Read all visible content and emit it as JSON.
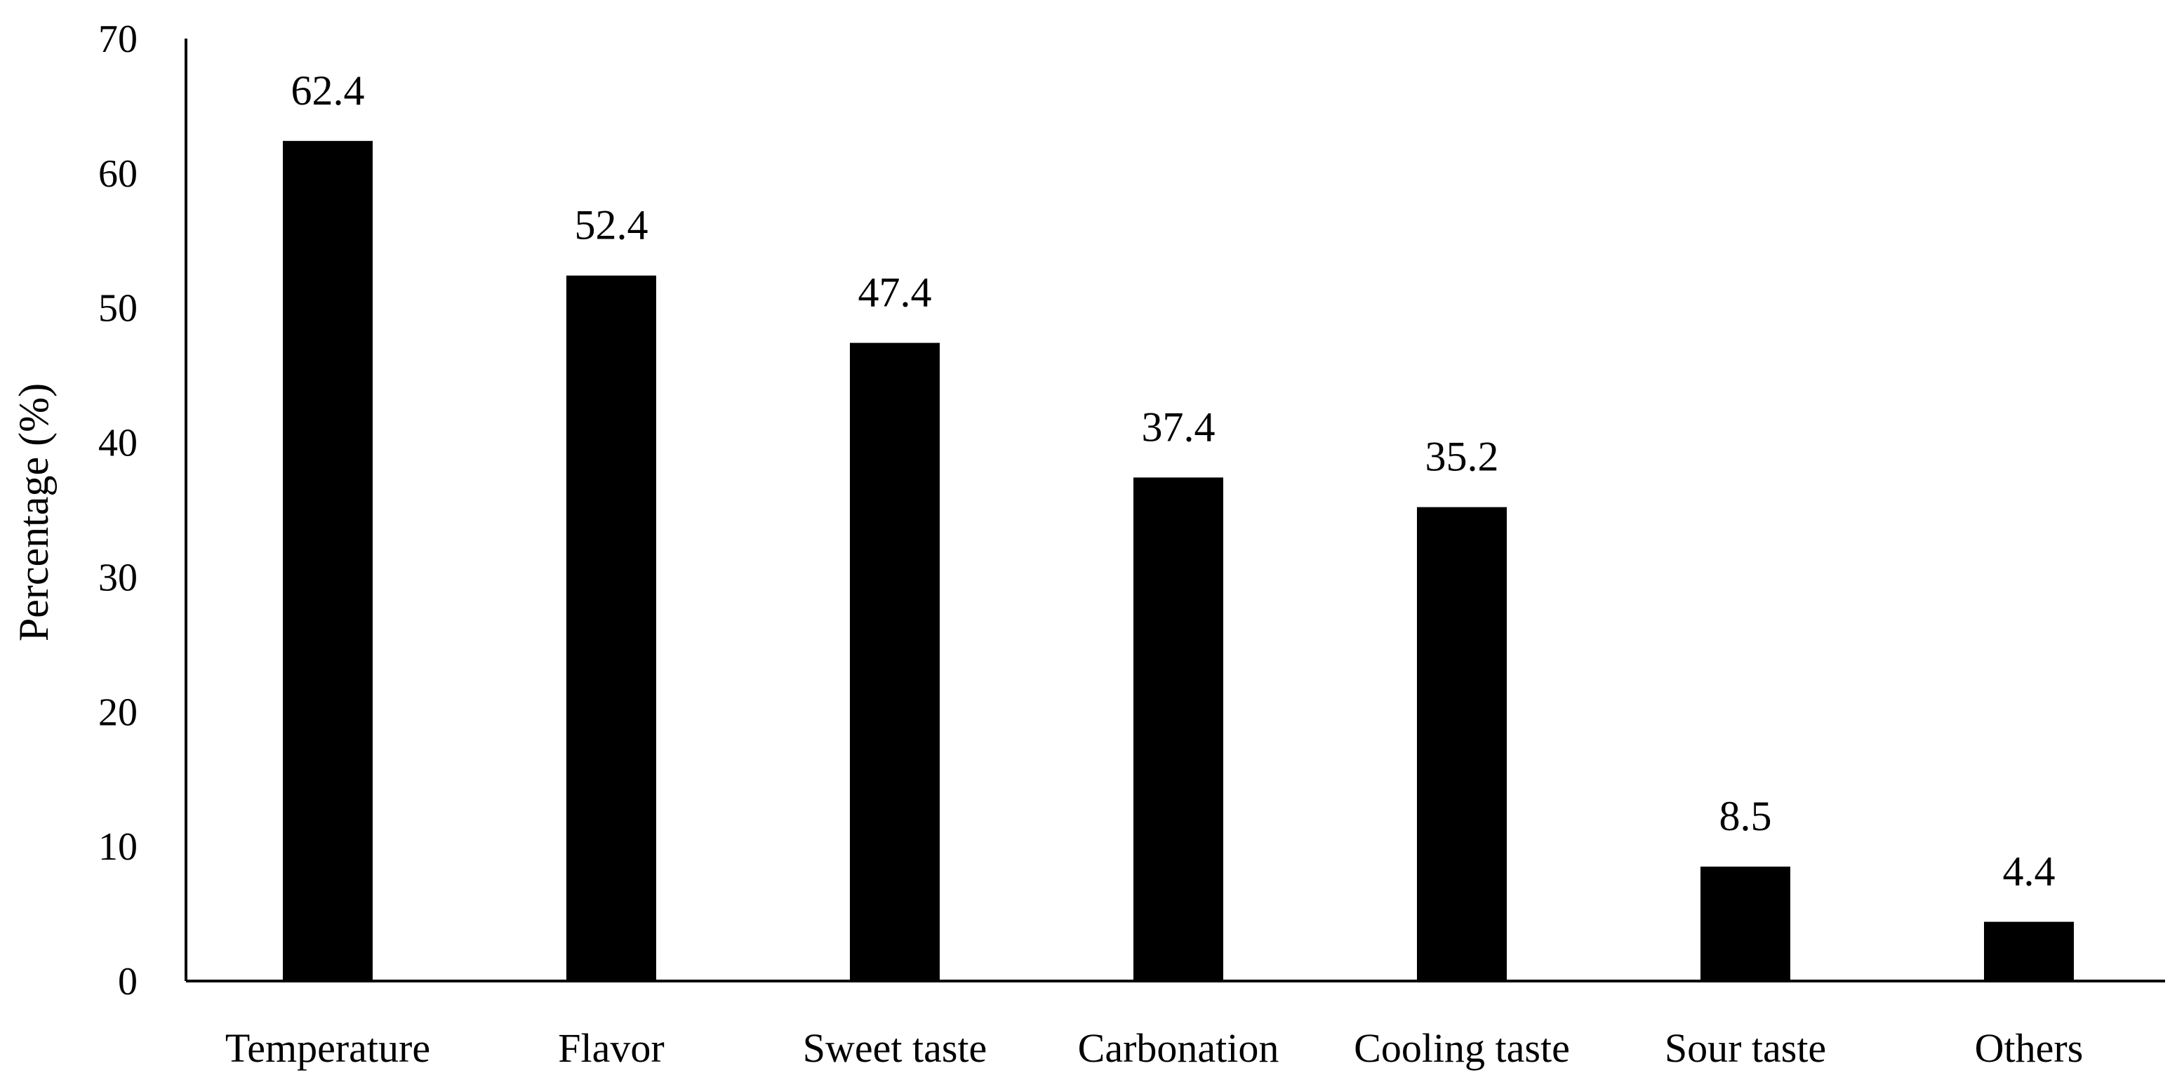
{
  "chart_data": {
    "type": "bar",
    "title": "",
    "xlabel": "",
    "ylabel": "Percentage (%)",
    "ylim": [
      0,
      70
    ],
    "yticks": [
      0,
      10,
      20,
      30,
      40,
      50,
      60,
      70
    ],
    "grid": false,
    "legend": "none",
    "categories": [
      "Temperature",
      "Flavor",
      "Sweet taste",
      "Carbonation",
      "Cooling taste",
      "Sour taste",
      "Others"
    ],
    "values": [
      62.4,
      52.4,
      47.4,
      37.4,
      35.2,
      8.5,
      4.4
    ],
    "data_labels": [
      "62.4",
      "52.4",
      "47.4",
      "37.4",
      "35.2",
      "8.5",
      "4.4"
    ],
    "bar_color": "#000000"
  }
}
